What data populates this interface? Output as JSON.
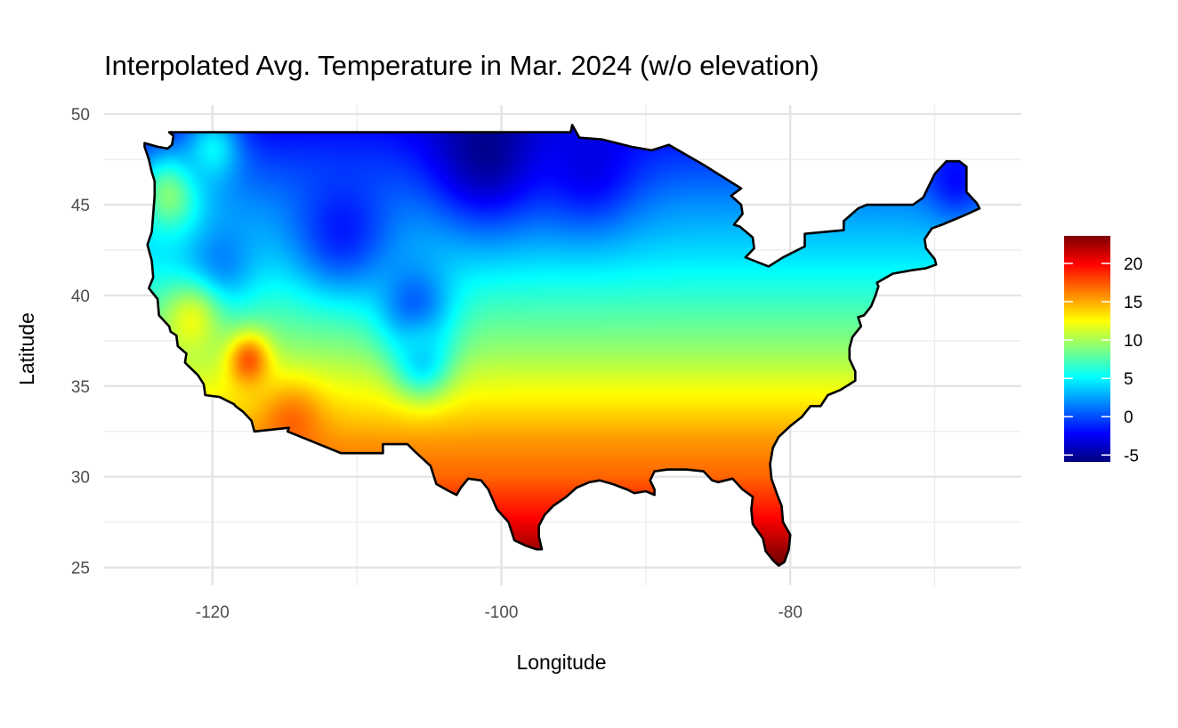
{
  "chart_data": {
    "type": "heatmap",
    "title": "Interpolated Avg. Temperature in Mar. 2024 (w/o elevation)",
    "xlabel": "Longitude",
    "ylabel": "Latitude",
    "xlim": [
      -127.5,
      -64.0
    ],
    "ylim": [
      24.0,
      50.5
    ],
    "x_ticks": [
      -120,
      -100,
      -80
    ],
    "y_ticks": [
      25,
      30,
      35,
      40,
      45,
      50
    ],
    "x_tick_labels": [
      "-120",
      "-100",
      "-80"
    ],
    "y_tick_labels": [
      "25",
      "30",
      "35",
      "40",
      "45",
      "50"
    ],
    "grid": true,
    "legend": {
      "position": "right",
      "min": -5.9,
      "max": 23.6,
      "ticks": [
        -5,
        0,
        5,
        10,
        15,
        20
      ],
      "tick_labels": [
        "-5",
        "0",
        "5",
        "10",
        "15",
        "20"
      ]
    },
    "colormap": [
      "#00007f",
      "#0000ff",
      "#007fff",
      "#00ffff",
      "#7fff7f",
      "#ffff00",
      "#ff7f00",
      "#ff0000",
      "#7f0000"
    ],
    "region": "contiguous United States",
    "outline": [
      [
        -123.0,
        49.0
      ],
      [
        -95.2,
        49.0
      ],
      [
        -95.1,
        49.4
      ],
      [
        -94.6,
        48.7
      ],
      [
        -93.0,
        48.6
      ],
      [
        -91.0,
        48.2
      ],
      [
        -89.6,
        48.0
      ],
      [
        -88.4,
        48.3
      ],
      [
        -86.0,
        47.2
      ],
      [
        -84.6,
        46.5
      ],
      [
        -84.0,
        46.2
      ],
      [
        -83.4,
        45.9
      ],
      [
        -84.1,
        45.5
      ],
      [
        -83.4,
        45.0
      ],
      [
        -83.3,
        44.5
      ],
      [
        -83.9,
        43.9
      ],
      [
        -83.5,
        43.8
      ],
      [
        -82.6,
        43.2
      ],
      [
        -82.5,
        42.6
      ],
      [
        -83.1,
        42.1
      ],
      [
        -81.5,
        41.6
      ],
      [
        -80.5,
        42.1
      ],
      [
        -79.0,
        42.7
      ],
      [
        -79.0,
        43.4
      ],
      [
        -76.3,
        43.6
      ],
      [
        -76.3,
        44.1
      ],
      [
        -75.3,
        44.8
      ],
      [
        -74.7,
        45.0
      ],
      [
        -71.5,
        45.0
      ],
      [
        -70.8,
        45.4
      ],
      [
        -70.0,
        46.7
      ],
      [
        -69.2,
        47.4
      ],
      [
        -68.3,
        47.4
      ],
      [
        -67.8,
        47.1
      ],
      [
        -67.8,
        45.7
      ],
      [
        -67.1,
        45.1
      ],
      [
        -66.9,
        44.8
      ],
      [
        -68.0,
        44.4
      ],
      [
        -69.5,
        43.9
      ],
      [
        -70.2,
        43.7
      ],
      [
        -70.7,
        43.1
      ],
      [
        -70.6,
        42.6
      ],
      [
        -70.0,
        42.0
      ],
      [
        -69.9,
        41.7
      ],
      [
        -70.6,
        41.5
      ],
      [
        -71.5,
        41.4
      ],
      [
        -72.9,
        41.2
      ],
      [
        -74.0,
        40.7
      ],
      [
        -73.9,
        40.5
      ],
      [
        -74.1,
        40.0
      ],
      [
        -74.4,
        39.4
      ],
      [
        -74.9,
        38.9
      ],
      [
        -75.3,
        38.8
      ],
      [
        -75.1,
        38.3
      ],
      [
        -75.7,
        37.7
      ],
      [
        -75.9,
        37.1
      ],
      [
        -75.9,
        36.5
      ],
      [
        -75.5,
        35.8
      ],
      [
        -75.5,
        35.3
      ],
      [
        -76.5,
        34.8
      ],
      [
        -77.4,
        34.5
      ],
      [
        -77.9,
        33.9
      ],
      [
        -78.6,
        33.9
      ],
      [
        -79.2,
        33.3
      ],
      [
        -80.0,
        32.8
      ],
      [
        -80.8,
        32.2
      ],
      [
        -81.2,
        31.6
      ],
      [
        -81.4,
        30.7
      ],
      [
        -81.3,
        29.9
      ],
      [
        -80.9,
        29.0
      ],
      [
        -80.6,
        28.4
      ],
      [
        -80.5,
        27.5
      ],
      [
        -80.0,
        26.8
      ],
      [
        -80.1,
        26.0
      ],
      [
        -80.4,
        25.3
      ],
      [
        -80.8,
        25.1
      ],
      [
        -81.2,
        25.4
      ],
      [
        -81.7,
        25.9
      ],
      [
        -81.9,
        26.6
      ],
      [
        -82.6,
        27.4
      ],
      [
        -82.7,
        28.2
      ],
      [
        -82.6,
        28.9
      ],
      [
        -83.3,
        29.3
      ],
      [
        -84.0,
        29.9
      ],
      [
        -85.0,
        29.7
      ],
      [
        -85.4,
        29.8
      ],
      [
        -86.0,
        30.3
      ],
      [
        -87.2,
        30.4
      ],
      [
        -88.0,
        30.4
      ],
      [
        -88.5,
        30.4
      ],
      [
        -89.4,
        30.3
      ],
      [
        -89.7,
        29.8
      ],
      [
        -89.4,
        29.3
      ],
      [
        -89.4,
        29.0
      ],
      [
        -90.0,
        29.2
      ],
      [
        -90.8,
        29.1
      ],
      [
        -91.3,
        29.3
      ],
      [
        -92.3,
        29.6
      ],
      [
        -93.2,
        29.8
      ],
      [
        -93.9,
        29.7
      ],
      [
        -94.8,
        29.4
      ],
      [
        -95.5,
        28.9
      ],
      [
        -96.4,
        28.4
      ],
      [
        -97.0,
        27.9
      ],
      [
        -97.4,
        27.3
      ],
      [
        -97.4,
        26.7
      ],
      [
        -97.2,
        26.0
      ],
      [
        -97.6,
        26.0
      ],
      [
        -98.3,
        26.2
      ],
      [
        -99.1,
        26.5
      ],
      [
        -99.5,
        27.5
      ],
      [
        -100.3,
        28.2
      ],
      [
        -100.9,
        29.3
      ],
      [
        -101.4,
        29.8
      ],
      [
        -102.3,
        29.9
      ],
      [
        -102.8,
        29.4
      ],
      [
        -103.1,
        29.0
      ],
      [
        -103.6,
        29.2
      ],
      [
        -104.5,
        29.6
      ],
      [
        -104.9,
        30.6
      ],
      [
        -106.0,
        31.4
      ],
      [
        -106.5,
        31.8
      ],
      [
        -108.2,
        31.8
      ],
      [
        -108.2,
        31.3
      ],
      [
        -111.1,
        31.3
      ],
      [
        -114.8,
        32.5
      ],
      [
        -114.7,
        32.7
      ],
      [
        -117.1,
        32.5
      ],
      [
        -117.3,
        33.1
      ],
      [
        -117.9,
        33.6
      ],
      [
        -118.4,
        33.9
      ],
      [
        -118.5,
        34.0
      ],
      [
        -119.5,
        34.4
      ],
      [
        -120.5,
        34.5
      ],
      [
        -120.6,
        35.1
      ],
      [
        -121.0,
        35.6
      ],
      [
        -121.9,
        36.3
      ],
      [
        -121.8,
        36.8
      ],
      [
        -122.4,
        37.2
      ],
      [
        -122.5,
        37.8
      ],
      [
        -122.9,
        38.0
      ],
      [
        -123.0,
        38.3
      ],
      [
        -123.7,
        38.9
      ],
      [
        -123.8,
        39.8
      ],
      [
        -124.4,
        40.4
      ],
      [
        -124.1,
        41.0
      ],
      [
        -124.2,
        41.9
      ],
      [
        -124.5,
        42.8
      ],
      [
        -124.2,
        43.5
      ],
      [
        -124.1,
        44.5
      ],
      [
        -124.0,
        45.5
      ],
      [
        -124.0,
        46.3
      ],
      [
        -124.2,
        46.8
      ],
      [
        -124.4,
        47.5
      ],
      [
        -124.7,
        48.2
      ],
      [
        -124.7,
        48.4
      ],
      [
        -123.8,
        48.2
      ],
      [
        -123.1,
        48.1
      ],
      [
        -122.8,
        48.3
      ],
      [
        -122.7,
        48.8
      ],
      [
        -123.0,
        49.0
      ]
    ],
    "temperature_field": {
      "base_model": "base(lat) = 15.5 at 25°N to 0 at 49°N (piecewise)",
      "anchors": [
        {
          "lat": 25.5,
          "temp": 23.5
        },
        {
          "lat": 28.0,
          "temp": 19.5
        },
        {
          "lat": 30.0,
          "temp": 17.0
        },
        {
          "lat": 32.0,
          "temp": 15.5
        },
        {
          "lat": 35.0,
          "temp": 12.0
        },
        {
          "lat": 37.0,
          "temp": 9.5
        },
        {
          "lat": 40.0,
          "temp": 6.5
        },
        {
          "lat": 42.0,
          "temp": 4.5
        },
        {
          "lat": 45.0,
          "temp": 2.0
        },
        {
          "lat": 47.0,
          "temp": 0.0
        },
        {
          "lat": 49.0,
          "temp": -2.0
        }
      ],
      "features": [
        {
          "lon": -117.5,
          "lat": 36.4,
          "temp": 17.5,
          "radius": 1.5
        },
        {
          "lon": -114.5,
          "lat": 32.8,
          "temp": 17.0,
          "radius": 2.2
        },
        {
          "lon": -119.5,
          "lat": 42.0,
          "temp": 1.5,
          "radius": 2.5
        },
        {
          "lon": -106.0,
          "lat": 39.5,
          "temp": 0.5,
          "radius": 2.6
        },
        {
          "lon": -105.5,
          "lat": 36.5,
          "temp": 4.0,
          "radius": 2.0
        },
        {
          "lon": -111.0,
          "lat": 43.8,
          "temp": -1.5,
          "radius": 3.5
        },
        {
          "lon": -101.0,
          "lat": 48.2,
          "temp": -5.5,
          "radius": 4.0
        },
        {
          "lon": -94.0,
          "lat": 47.5,
          "temp": -3.0,
          "radius": 3.5
        },
        {
          "lon": -123.0,
          "lat": 45.5,
          "temp": 9.0,
          "radius": 2.2
        },
        {
          "lon": -121.5,
          "lat": 38.5,
          "temp": 12.0,
          "radius": 2.0
        },
        {
          "lon": -120.0,
          "lat": 48.0,
          "temp": 5.0,
          "radius": 2.0
        },
        {
          "lon": -68.5,
          "lat": 46.5,
          "temp": -2.0,
          "radius": 2.0
        }
      ]
    }
  }
}
